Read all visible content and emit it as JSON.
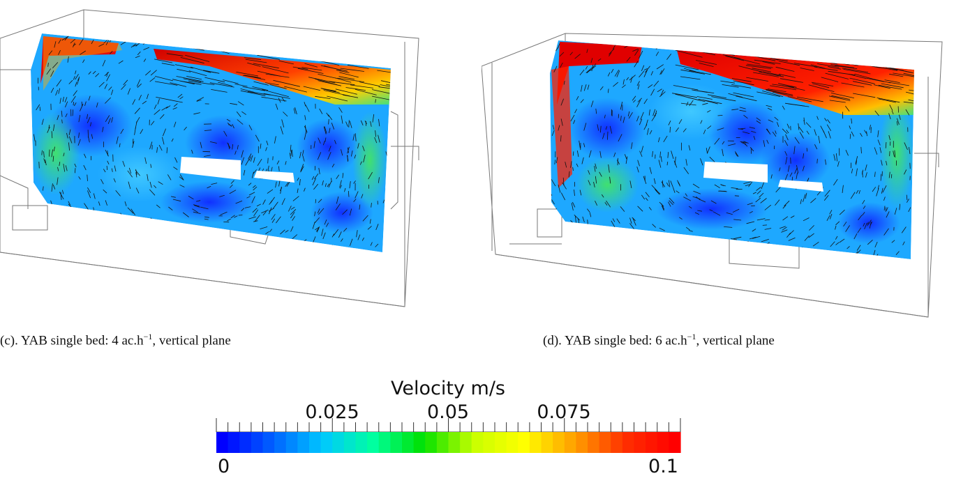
{
  "panels": [
    {
      "id": "c",
      "caption_prefix": "(c).  YAB single bed:  4 ac.h",
      "caption_exponent": "−1",
      "caption_suffix": ", vertical plane"
    },
    {
      "id": "d",
      "caption_prefix": "(d).  YAB single bed:  6 ac.h",
      "caption_exponent": "−1",
      "caption_suffix": ", vertical plane"
    }
  ],
  "colorbar": {
    "title": "Velocity m/s",
    "range": [
      0,
      0.1
    ],
    "upper_ticks": [
      "0.025",
      "0.05",
      "0.075"
    ],
    "lower_ticks": [
      "0",
      "0.1"
    ],
    "colors": [
      "#0000ff",
      "#0060ff",
      "#00c8ff",
      "#00ffa0",
      "#00e000",
      "#c8ff00",
      "#ffff00",
      "#ffa000",
      "#ff3000",
      "#ff0000"
    ]
  },
  "legend_colors": {
    "low": "#1a2cff",
    "mid": "#1ea0ff",
    "cyan": "#55dcff",
    "green": "#30e060",
    "yellow": "#f0ff20",
    "orange": "#ffa020",
    "high": "#e00000"
  }
}
